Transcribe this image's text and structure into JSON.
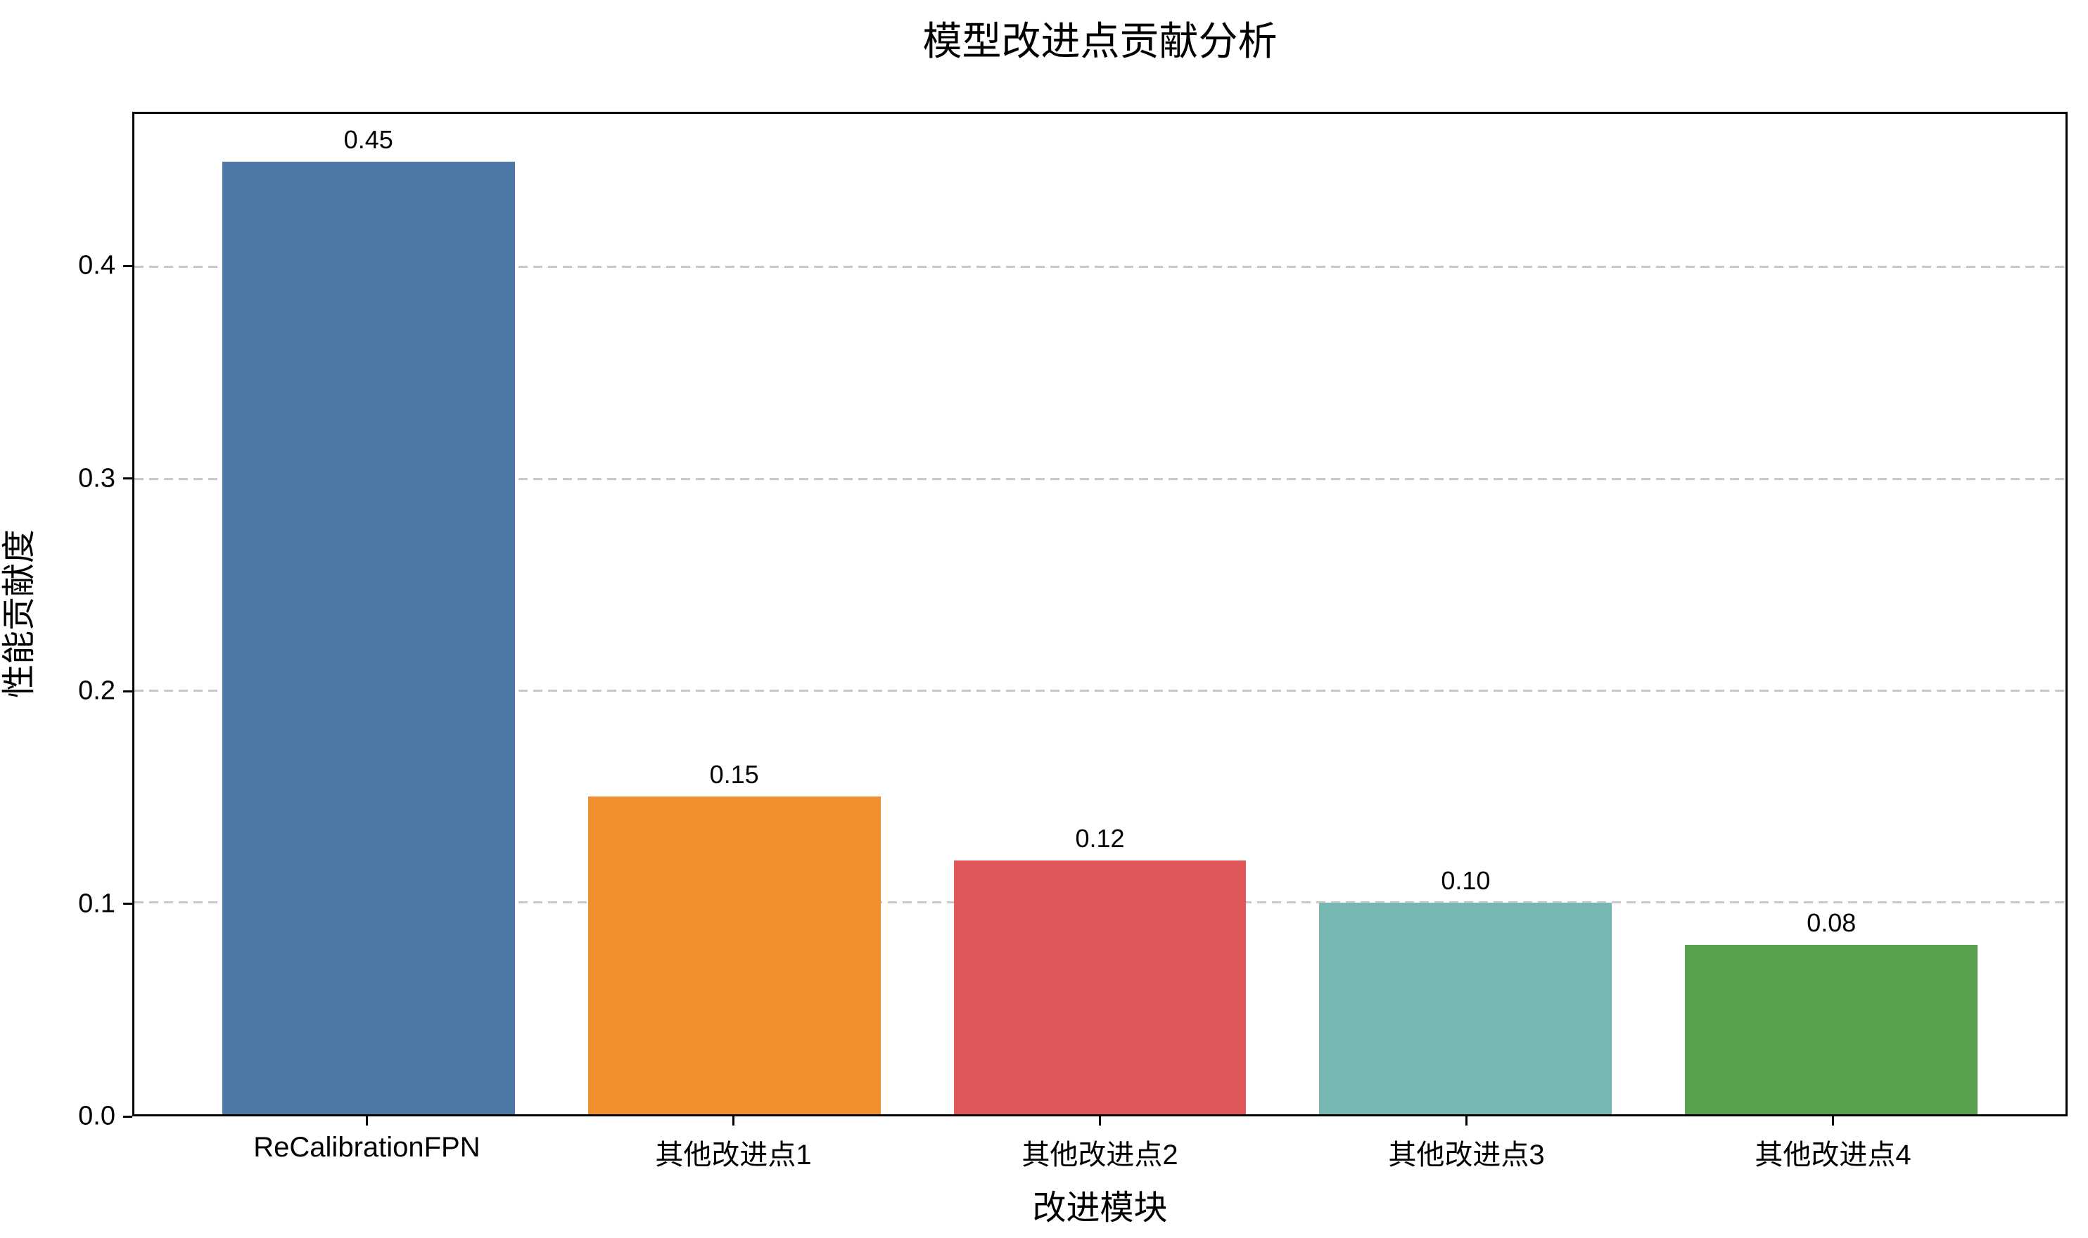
{
  "title": "模型改进点贡献分析",
  "chart_data": {
    "type": "bar",
    "title": "模型改进点贡献分析",
    "xlabel": "改进模块",
    "ylabel": "性能贡献度",
    "categories": [
      "ReCalibrationFPN",
      "其他改进点1",
      "其他改进点2",
      "其他改进点3",
      "其他改进点4"
    ],
    "values": [
      0.45,
      0.15,
      0.12,
      0.1,
      0.08
    ],
    "value_labels": [
      "0.45",
      "0.15",
      "0.12",
      "0.10",
      "0.08"
    ],
    "bar_colors": [
      "#4e79a7",
      "#f28e2b",
      "#e15759",
      "#76b7b2",
      "#59a14f"
    ],
    "ylim": [
      0,
      0.4725
    ],
    "yticks": [
      0,
      0.1,
      0.2,
      0.3,
      0.4
    ],
    "ytick_labels": [
      "0.0",
      "0.1",
      "0.2",
      "0.3",
      "0.4"
    ],
    "xunit_span": 5.28,
    "xunit_offset": 0.64,
    "bar_unit_width": 0.8,
    "grid": "horizontal dashed gridlines at yticks",
    "legend": "none",
    "grid_color": "#c9c9c9",
    "axis_color": "#000000",
    "background": "#ffffff"
  }
}
